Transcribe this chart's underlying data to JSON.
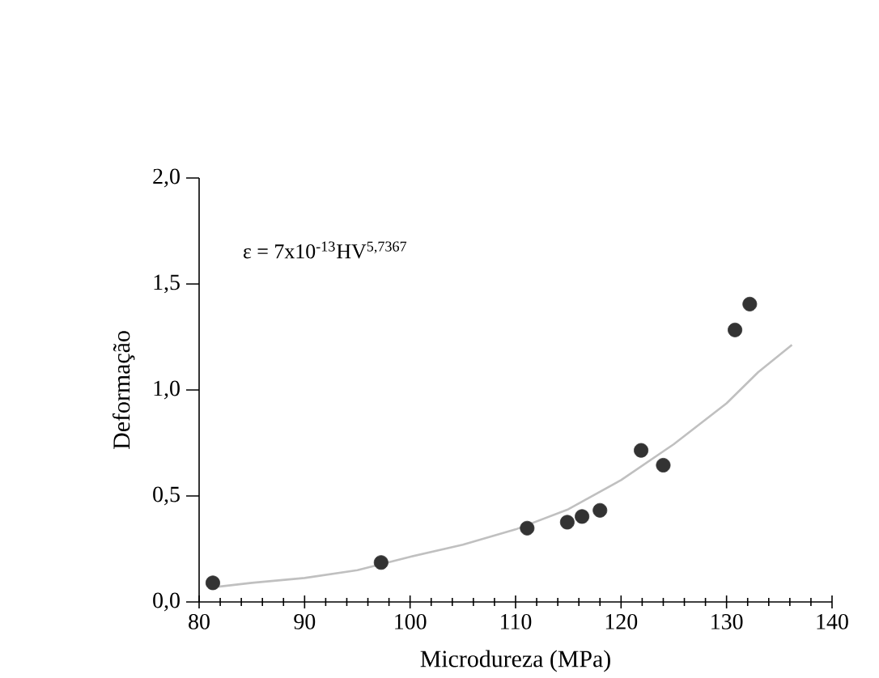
{
  "chart_data": {
    "type": "scatter",
    "xlabel": "Microdureza (MPa)",
    "ylabel": "Deformação",
    "annotations": [
      "ε = 7x10$^{-13}$HV$^{5,7367}$"
    ],
    "xlim": [
      80,
      140
    ],
    "xticks": [
      80,
      90,
      100,
      110,
      120,
      130,
      140
    ],
    "ylim": [
      0,
      2
    ],
    "yticks": [
      {
        "value": 0,
        "label": "0,0"
      },
      {
        "value": 0.5,
        "label": "0,5"
      },
      {
        "value": 1,
        "label": "1,0"
      },
      {
        "value": 1.5,
        "label": "1,5"
      },
      {
        "value": 2,
        "label": "2,0"
      }
    ],
    "series": [
      {
        "type": "line",
        "color": "#c0c0c0",
        "marker": "none",
        "x": [
          81.5,
          85,
          90,
          95,
          100,
          105,
          110,
          115,
          120,
          125,
          130,
          133,
          136.2
        ],
        "values": [
          0.07,
          0.09,
          0.113,
          0.15,
          0.213,
          0.27,
          0.342,
          0.437,
          0.575,
          0.744,
          0.937,
          1.084,
          1.213
        ]
      },
      {
        "color": "#333333",
        "marker": "circle",
        "x": [
          81.3,
          97.25,
          111.1,
          114.9,
          116.3,
          118.0,
          121.9,
          124.0,
          130.8,
          132.2
        ],
        "values": [
          0.09,
          0.186,
          0.348,
          0.376,
          0.403,
          0.432,
          0.715,
          0.645,
          1.283,
          1.405
        ]
      }
    ]
  }
}
